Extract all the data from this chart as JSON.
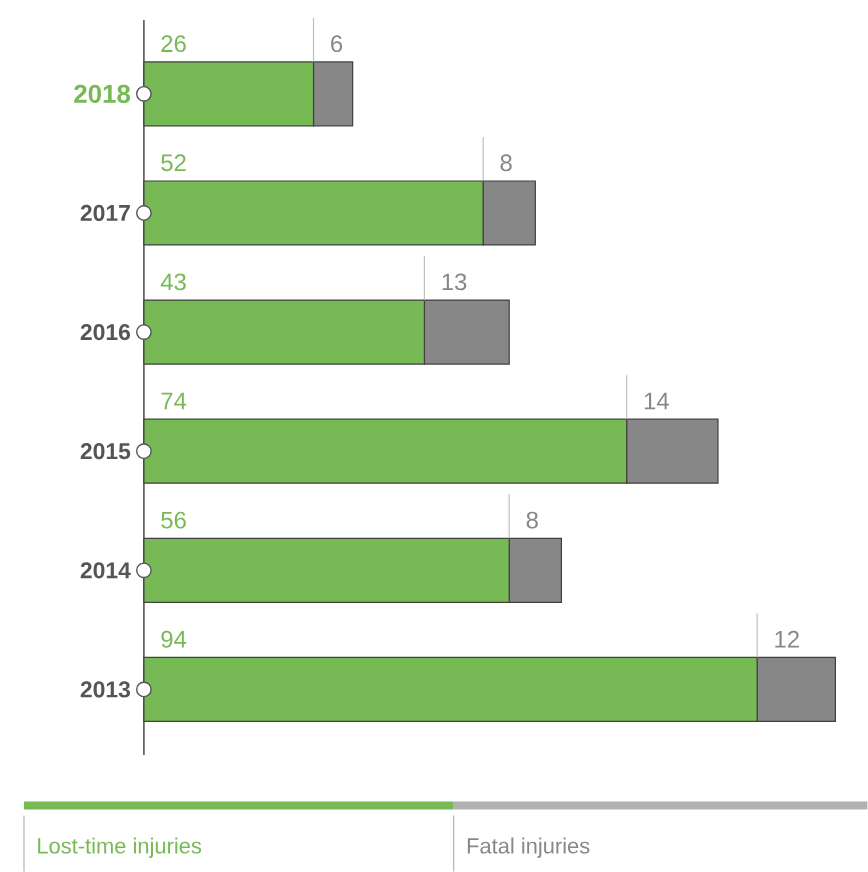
{
  "chart_data": {
    "type": "bar",
    "orientation": "horizontal",
    "stacked": true,
    "data_labels": true,
    "legend": "bottom",
    "categories": [
      "2018",
      "2017",
      "2016",
      "2015",
      "2014",
      "2013"
    ],
    "series": [
      {
        "name": "Lost-time injuries",
        "color": "#77b955",
        "values": [
          26,
          52,
          43,
          74,
          56,
          94
        ]
      },
      {
        "name": "Fatal injuries",
        "color": "#878787",
        "values": [
          6,
          8,
          13,
          14,
          8,
          12
        ]
      }
    ]
  }
}
